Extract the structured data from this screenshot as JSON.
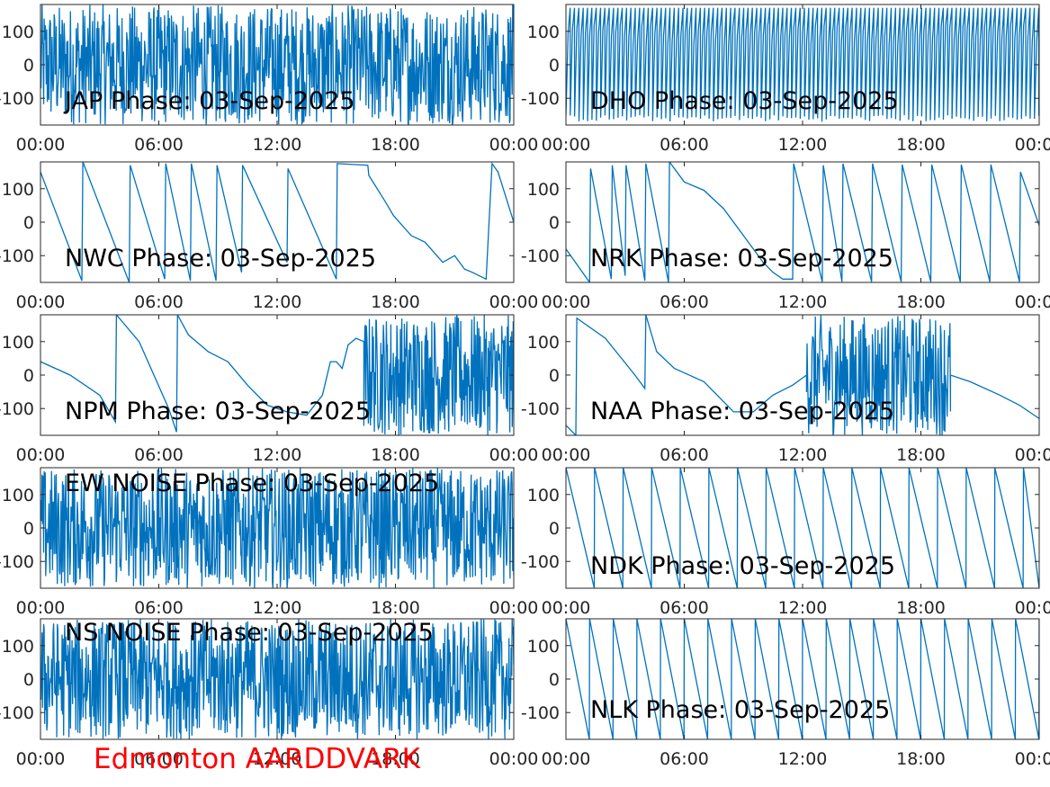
{
  "footer": {
    "title": "Edmonton AARDDVARK",
    "color": "#ff0000"
  },
  "style": {
    "line_color": "#0072bd",
    "axis_color": "#262626",
    "label_color": "#000000"
  },
  "chart_data": [
    {
      "id": "jap",
      "title": "JAP Phase: 03-Sep-2025",
      "type": "line",
      "x_ticks": [
        "00:00",
        "06:00",
        "12:00",
        "18:00",
        "00:00"
      ],
      "y_ticks": [
        "100",
        "0",
        "-100"
      ],
      "xlim": [
        0,
        24
      ],
      "ylim": [
        -180,
        180
      ],
      "grid": false,
      "pattern": "noise"
    },
    {
      "id": "dho",
      "title": "DHO Phase: 03-Sep-2025",
      "type": "line",
      "x_ticks": [
        "00:00",
        "06:00",
        "12:00",
        "18:00",
        "00:00"
      ],
      "y_ticks": [
        "100",
        "0",
        "-100"
      ],
      "xlim": [
        0,
        24
      ],
      "ylim": [
        -180,
        180
      ],
      "grid": false,
      "pattern": "dense-sawtooth"
    },
    {
      "id": "nwc",
      "title": "NWC Phase: 03-Sep-2025",
      "type": "line",
      "x_ticks": [
        "00:00",
        "06:00",
        "12:00",
        "18:00",
        "00:00"
      ],
      "y_ticks": [
        "100",
        "0",
        "-100"
      ],
      "xlim": [
        0,
        24
      ],
      "ylim": [
        -180,
        180
      ],
      "grid": false,
      "x": [
        0,
        2.1,
        2.15,
        4.5,
        4.55,
        6.3,
        6.35,
        7.6,
        7.65,
        8.9,
        8.95,
        10.2,
        10.25,
        12.5,
        12.55,
        15,
        15.05,
        16.6,
        16.65,
        17.5,
        17.9,
        18.8,
        19.5,
        20.4,
        21.0,
        21.5,
        21.9,
        22.6,
        22.9,
        23.2,
        24
      ],
      "y": [
        150,
        -175,
        180,
        -180,
        170,
        -170,
        175,
        -175,
        175,
        -175,
        170,
        -150,
        170,
        -120,
        160,
        -170,
        175,
        170,
        140,
        60,
        20,
        -40,
        -60,
        -120,
        -100,
        -140,
        -150,
        -170,
        175,
        150,
        0
      ]
    },
    {
      "id": "nrk",
      "title": "NRK Phase: 03-Sep-2025",
      "type": "line",
      "x_ticks": [
        "00:00",
        "06:00",
        "12:00",
        "18:00",
        "00:00"
      ],
      "y_ticks": [
        "100",
        "0",
        "-100"
      ],
      "xlim": [
        0,
        24
      ],
      "ylim": [
        -180,
        180
      ],
      "grid": false,
      "x": [
        0,
        1.2,
        1.25,
        2.3,
        2.35,
        3.0,
        3.05,
        4.0,
        4.05,
        5.2,
        5.25,
        6.0,
        7.0,
        8.0,
        9.0,
        10.0,
        10.5,
        11.0,
        11.5,
        11.55,
        13.0,
        13.05,
        14.0,
        14.05,
        15.5,
        15.55,
        17.0,
        17.05,
        18.5,
        18.55,
        20.0,
        20.05,
        21.5,
        21.55,
        23.0,
        23.05,
        24
      ],
      "y": [
        -80,
        -180,
        160,
        -170,
        170,
        -160,
        170,
        -175,
        175,
        -180,
        180,
        120,
        95,
        40,
        -40,
        -120,
        -150,
        -170,
        -170,
        175,
        -178,
        170,
        -178,
        175,
        -178,
        175,
        -178,
        172,
        -178,
        172,
        -178,
        172,
        -178,
        172,
        -178,
        150,
        -10
      ]
    },
    {
      "id": "npm",
      "title": "NPM Phase: 03-Sep-2025",
      "type": "line",
      "x_ticks": [
        "00:00",
        "06:00",
        "12:00",
        "18:00",
        "00:00"
      ],
      "y_ticks": [
        "100",
        "0",
        "-100"
      ],
      "xlim": [
        0,
        24
      ],
      "ylim": [
        -180,
        180
      ],
      "grid": false,
      "x": [
        0,
        1.5,
        3.0,
        3.8,
        3.85,
        5.0,
        6.5,
        6.9,
        6.95,
        7.5,
        8.5,
        9.5,
        10.5,
        11.5,
        12.5,
        13.5,
        14.3,
        14.7,
        15.0,
        15.3,
        15.6,
        16.0,
        16.4
      ],
      "y": [
        40,
        0,
        -60,
        -140,
        180,
        100,
        -100,
        -170,
        180,
        120,
        70,
        40,
        -30,
        -90,
        -110,
        -120,
        -60,
        40,
        40,
        20,
        90,
        110,
        100
      ],
      "noise_after": 16.4
    },
    {
      "id": "naa",
      "title": "NAA Phase: 03-Sep-2025",
      "type": "line",
      "x_ticks": [
        "00:00",
        "06:00",
        "12:00",
        "18:00",
        "00:00"
      ],
      "y_ticks": [
        "100",
        "0",
        "-100"
      ],
      "xlim": [
        0,
        24
      ],
      "ylim": [
        -180,
        180
      ],
      "grid": false,
      "x": [
        0,
        0.5,
        0.55,
        2.0,
        3.5,
        4.0,
        4.05,
        4.6,
        5.5,
        7.0,
        8.5,
        9.5,
        10.5,
        11.5,
        12.2
      ],
      "y": [
        -150,
        -180,
        170,
        110,
        0,
        -40,
        180,
        70,
        20,
        -20,
        -110,
        -110,
        -60,
        -30,
        0
      ],
      "noise_range": [
        12.2,
        19.5
      ],
      "x2": [
        19.5,
        20.5,
        22.0,
        23.0,
        24
      ],
      "y2": [
        0,
        -20,
        -60,
        -90,
        -130
      ]
    },
    {
      "id": "ew-noise",
      "title": "EW NOISE Phase: 03-Sep-2025",
      "type": "line",
      "x_ticks": [
        "00:00",
        "06:00",
        "12:00",
        "18:00",
        "00:00"
      ],
      "y_ticks": [
        "100",
        "0",
        "-100"
      ],
      "xlim": [
        0,
        24
      ],
      "ylim": [
        -180,
        180
      ],
      "grid": false,
      "pattern": "noise"
    },
    {
      "id": "ndk",
      "title": "NDK Phase: 03-Sep-2025",
      "type": "line",
      "x_ticks": [
        "00:00",
        "06:00",
        "12:00",
        "18:00",
        "00:00"
      ],
      "y_ticks": [
        "100",
        "0",
        "-100"
      ],
      "xlim": [
        0,
        24
      ],
      "ylim": [
        -180,
        180
      ],
      "grid": false,
      "pattern": "sawtooth",
      "period_hours": 1.45
    },
    {
      "id": "ns-noise",
      "title": "NS NOISE Phase: 03-Sep-2025",
      "type": "line",
      "x_ticks": [
        "00:00",
        "06:00",
        "12:00",
        "18:00",
        "00:00"
      ],
      "y_ticks": [
        "100",
        "0",
        "-100"
      ],
      "xlim": [
        0,
        24
      ],
      "ylim": [
        -180,
        180
      ],
      "grid": false,
      "pattern": "noise"
    },
    {
      "id": "nlk",
      "title": "NLK Phase: 03-Sep-2025",
      "type": "line",
      "x_ticks": [
        "00:00",
        "06:00",
        "12:00",
        "18:00",
        "00:00"
      ],
      "y_ticks": [
        "100",
        "0",
        "-100"
      ],
      "xlim": [
        0,
        24
      ],
      "ylim": [
        -180,
        180
      ],
      "grid": false,
      "pattern": "sawtooth",
      "period_hours": 1.2
    }
  ]
}
